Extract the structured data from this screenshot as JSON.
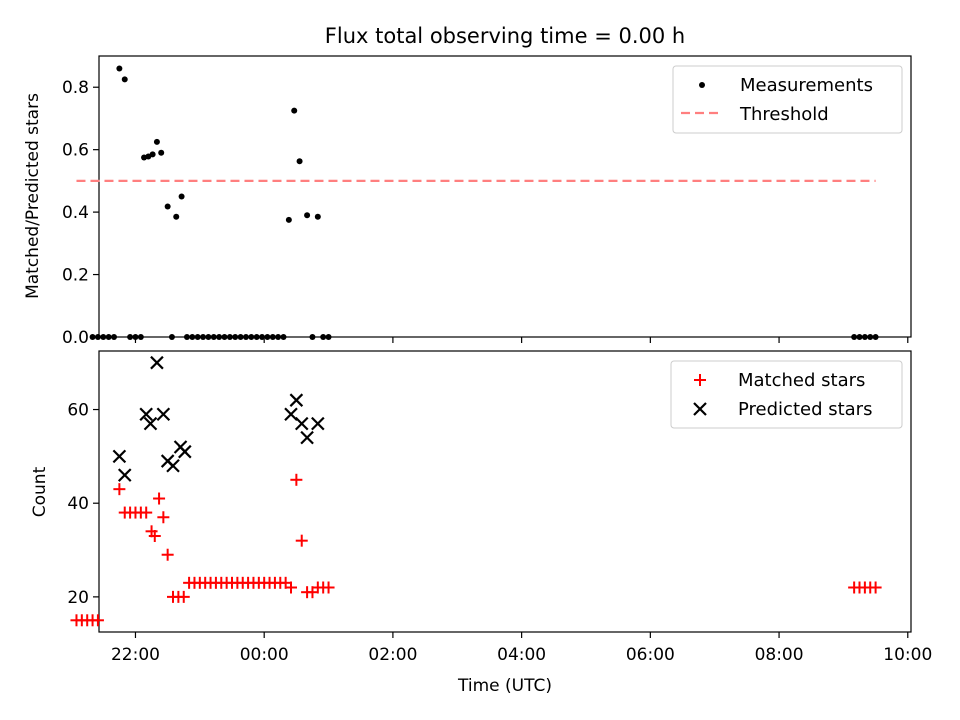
{
  "figure": {
    "title": "Flux total observing time = 0.00 h",
    "xlabel": "Time (UTC)",
    "xticks": [
      "22:00",
      "00:00",
      "02:00",
      "04:00",
      "06:00",
      "08:00",
      "10:00"
    ]
  },
  "chart_data": [
    {
      "type": "scatter",
      "ylabel": "Matched/Predicted stars",
      "xlim": [
        "21:26",
        "10:03"
      ],
      "ylim": [
        0,
        0.9
      ],
      "yticks": [
        "0.0",
        "0.2",
        "0.4",
        "0.6",
        "0.8"
      ],
      "legend_position": "top-right",
      "legend": [
        "Measurements",
        "Threshold"
      ],
      "series": [
        {
          "name": "Measurements",
          "marker": "dot",
          "color": "#000000",
          "points": [
            [
              "21:20",
              0
            ],
            [
              "21:25",
              0
            ],
            [
              "21:30",
              0
            ],
            [
              "21:35",
              0
            ],
            [
              "21:40",
              0
            ],
            [
              "21:45",
              0.86
            ],
            [
              "21:50",
              0.825
            ],
            [
              "21:55",
              0
            ],
            [
              "22:00",
              0
            ],
            [
              "22:05",
              0
            ],
            [
              "22:08",
              0.575
            ],
            [
              "22:12",
              0.578
            ],
            [
              "22:16",
              0.585
            ],
            [
              "22:20",
              0.625
            ],
            [
              "22:24",
              0.59
            ],
            [
              "22:30",
              0.418
            ],
            [
              "22:34",
              0
            ],
            [
              "22:38",
              0.385
            ],
            [
              "22:43",
              0.45
            ],
            [
              "22:48",
              0
            ],
            [
              "22:53",
              0
            ],
            [
              "22:58",
              0
            ],
            [
              "23:03",
              0
            ],
            [
              "23:08",
              0
            ],
            [
              "23:13",
              0
            ],
            [
              "23:18",
              0
            ],
            [
              "23:23",
              0
            ],
            [
              "23:28",
              0
            ],
            [
              "23:33",
              0
            ],
            [
              "23:38",
              0
            ],
            [
              "23:43",
              0
            ],
            [
              "23:48",
              0
            ],
            [
              "23:53",
              0
            ],
            [
              "23:58",
              0
            ],
            [
              "00:03",
              0
            ],
            [
              "00:08",
              0
            ],
            [
              "00:13",
              0
            ],
            [
              "00:18",
              0
            ],
            [
              "00:23",
              0.375
            ],
            [
              "00:28",
              0.725
            ],
            [
              "00:33",
              0.563
            ],
            [
              "00:40",
              0.39
            ],
            [
              "00:45",
              0
            ],
            [
              "00:50",
              0.385
            ],
            [
              "00:55",
              0
            ],
            [
              "01:00",
              0
            ],
            [
              "09:10",
              0
            ],
            [
              "09:15",
              0
            ],
            [
              "09:20",
              0
            ],
            [
              "09:25",
              0
            ],
            [
              "09:30",
              0
            ]
          ]
        },
        {
          "name": "Threshold",
          "style": "dashed",
          "color": "#ff7f7f",
          "x": [
            "21:05",
            "09:30"
          ],
          "y": [
            0.5,
            0.5
          ]
        }
      ]
    },
    {
      "type": "scatter",
      "ylabel": "Count",
      "xlim": [
        "21:26",
        "10:03"
      ],
      "ylim": [
        12.5,
        72.5
      ],
      "yticks": [
        "20",
        "40",
        "60"
      ],
      "legend_position": "top-right",
      "legend": [
        "Matched stars",
        "Predicted stars"
      ],
      "series": [
        {
          "name": "Matched stars",
          "marker": "plus",
          "color": "#ff0000",
          "points": [
            [
              "21:05",
              15
            ],
            [
              "21:10",
              15
            ],
            [
              "21:15",
              15
            ],
            [
              "21:20",
              15
            ],
            [
              "21:25",
              15
            ],
            [
              "21:45",
              43
            ],
            [
              "21:50",
              38
            ],
            [
              "21:55",
              38
            ],
            [
              "22:00",
              38
            ],
            [
              "22:05",
              38
            ],
            [
              "22:10",
              38
            ],
            [
              "22:15",
              34
            ],
            [
              "22:18",
              33
            ],
            [
              "22:22",
              41
            ],
            [
              "22:26",
              37
            ],
            [
              "22:30",
              29
            ],
            [
              "22:35",
              20
            ],
            [
              "22:40",
              20
            ],
            [
              "22:45",
              20
            ],
            [
              "22:50",
              23
            ],
            [
              "22:55",
              23
            ],
            [
              "23:00",
              23
            ],
            [
              "23:05",
              23
            ],
            [
              "23:10",
              23
            ],
            [
              "23:15",
              23
            ],
            [
              "23:20",
              23
            ],
            [
              "23:25",
              23
            ],
            [
              "23:30",
              23
            ],
            [
              "23:35",
              23
            ],
            [
              "23:40",
              23
            ],
            [
              "23:45",
              23
            ],
            [
              "23:50",
              23
            ],
            [
              "23:55",
              23
            ],
            [
              "00:00",
              23
            ],
            [
              "00:05",
              23
            ],
            [
              "00:10",
              23
            ],
            [
              "00:15",
              23
            ],
            [
              "00:20",
              23
            ],
            [
              "00:25",
              22
            ],
            [
              "00:30",
              45
            ],
            [
              "00:35",
              32
            ],
            [
              "00:40",
              21
            ],
            [
              "00:45",
              21
            ],
            [
              "00:50",
              22
            ],
            [
              "00:55",
              22
            ],
            [
              "01:00",
              22
            ],
            [
              "09:10",
              22
            ],
            [
              "09:15",
              22
            ],
            [
              "09:20",
              22
            ],
            [
              "09:25",
              22
            ],
            [
              "09:30",
              22
            ]
          ]
        },
        {
          "name": "Predicted stars",
          "marker": "x",
          "color": "#000000",
          "points": [
            [
              "21:45",
              50
            ],
            [
              "21:50",
              46
            ],
            [
              "22:10",
              59
            ],
            [
              "22:14",
              57
            ],
            [
              "22:20",
              70
            ],
            [
              "22:26",
              59
            ],
            [
              "22:30",
              49
            ],
            [
              "22:35",
              48
            ],
            [
              "22:42",
              52
            ],
            [
              "22:46",
              51
            ],
            [
              "00:25",
              59
            ],
            [
              "00:30",
              62
            ],
            [
              "00:35",
              57
            ],
            [
              "00:40",
              54
            ],
            [
              "00:50",
              57
            ]
          ]
        }
      ]
    }
  ]
}
